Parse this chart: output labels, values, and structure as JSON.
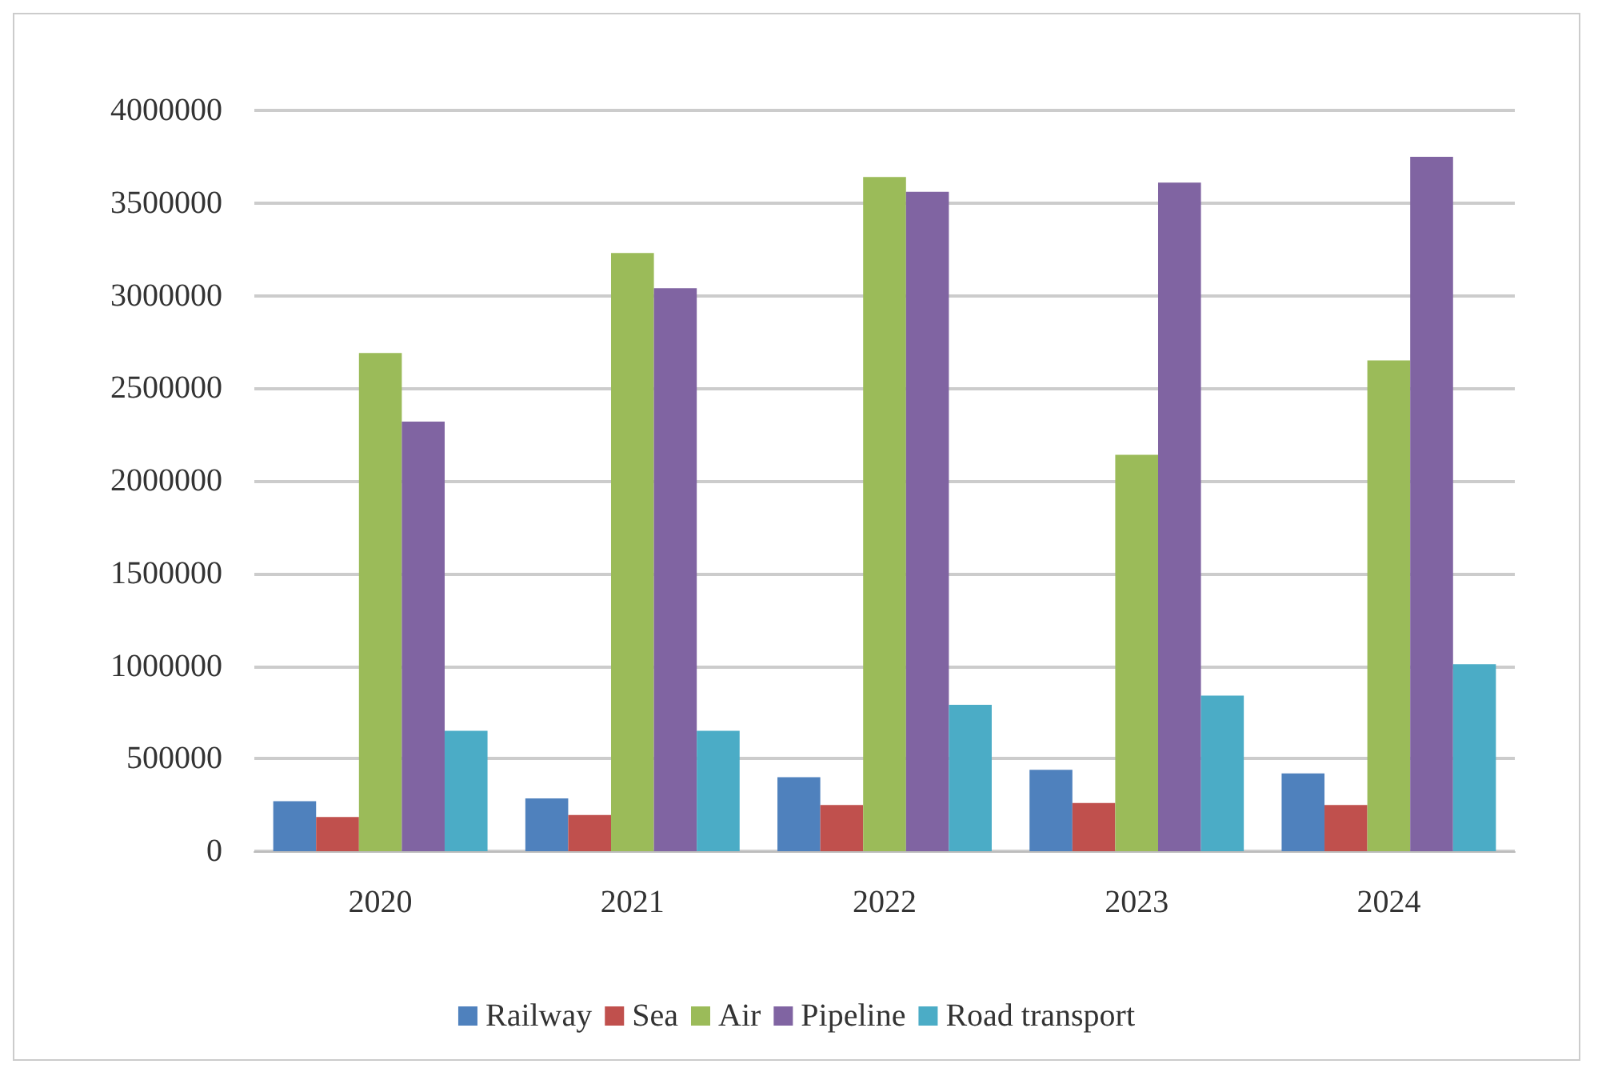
{
  "chart_data": {
    "type": "bar",
    "categories": [
      "2020",
      "2021",
      "2022",
      "2023",
      "2024"
    ],
    "series": [
      {
        "name": "Railway",
        "color": "#4f81bd",
        "values": [
          270000,
          285000,
          400000,
          440000,
          420000
        ]
      },
      {
        "name": "Sea",
        "color": "#c0504d",
        "values": [
          185000,
          195000,
          250000,
          260000,
          250000
        ]
      },
      {
        "name": "Air",
        "color": "#9bbb59",
        "values": [
          2690000,
          3230000,
          3640000,
          2140000,
          2650000
        ]
      },
      {
        "name": "Pipeline",
        "color": "#8064a2",
        "values": [
          2320000,
          3040000,
          3560000,
          3610000,
          3750000
        ]
      },
      {
        "name": "Road transport",
        "color": "#4bacc6",
        "values": [
          650000,
          650000,
          790000,
          840000,
          1010000
        ]
      }
    ],
    "ylim": [
      0,
      4000000
    ],
    "yticks": [
      0,
      500000,
      1000000,
      1500000,
      2000000,
      2500000,
      3000000,
      3500000,
      4000000
    ],
    "grid": "y",
    "legend": "bottom"
  }
}
